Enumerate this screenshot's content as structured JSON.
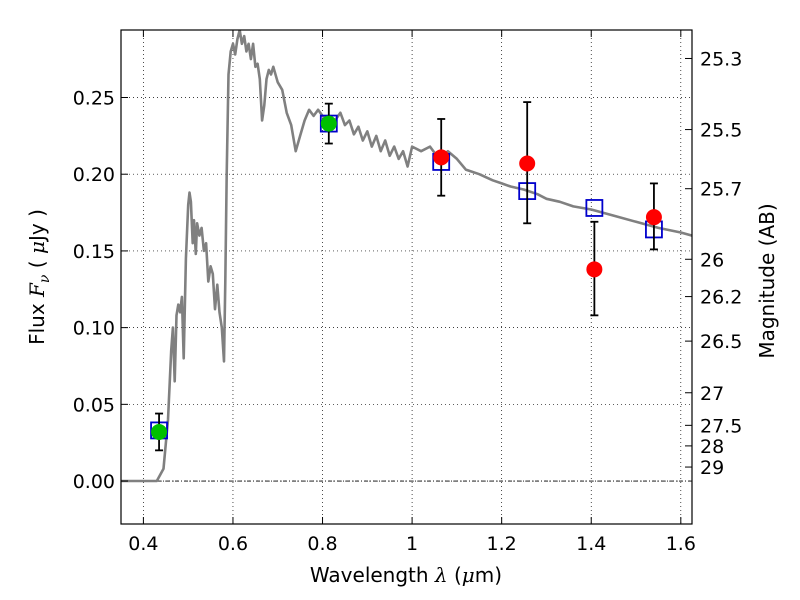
{
  "chart_data": {
    "type": "scatter",
    "title": "",
    "xlabel": {
      "prefix": "Wavelength  ",
      "sym": "λ",
      "suffix": " (",
      "mu": "μ",
      "unit": "m)"
    },
    "ylabel": {
      "prefix": "Flux  ",
      "sym": "F",
      "sub": "ν",
      "suffix": "  ( ",
      "mu": "μ",
      "unit": "Jy )"
    },
    "y2label": "Magnitude (AB)",
    "xlim": [
      0.35,
      1.625
    ],
    "ylim": [
      -0.028,
      0.294
    ],
    "grid": true,
    "x_ticks": [
      {
        "v": 0.4,
        "label": "0.4"
      },
      {
        "v": 0.6,
        "label": "0.6"
      },
      {
        "v": 0.8,
        "label": "0.8"
      },
      {
        "v": 1.0,
        "label": "1"
      },
      {
        "v": 1.2,
        "label": "1.2"
      },
      {
        "v": 1.4,
        "label": "1.4"
      },
      {
        "v": 1.6,
        "label": "1.6"
      }
    ],
    "y_ticks": [
      {
        "v": 0.0,
        "label": "0.00"
      },
      {
        "v": 0.05,
        "label": "0.05"
      },
      {
        "v": 0.1,
        "label": "0.10"
      },
      {
        "v": 0.15,
        "label": "0.15"
      },
      {
        "v": 0.2,
        "label": "0.20"
      },
      {
        "v": 0.25,
        "label": "0.25"
      }
    ],
    "mag_ticks": [
      {
        "mag": 25.3,
        "label": "25.3"
      },
      {
        "mag": 25.5,
        "label": "25.5"
      },
      {
        "mag": 25.7,
        "label": "25.7"
      },
      {
        "mag": 26.0,
        "label": "26"
      },
      {
        "mag": 26.2,
        "label": "26.2"
      },
      {
        "mag": 26.5,
        "label": "26.5"
      },
      {
        "mag": 27.0,
        "label": "27"
      },
      {
        "mag": 27.5,
        "label": "27.5"
      },
      {
        "mag": 28.0,
        "label": "28"
      },
      {
        "mag": 29.0,
        "label": "29"
      }
    ],
    "sed_model": {
      "color": "#808080",
      "points": [
        [
          0.35,
          0.0
        ],
        [
          0.42,
          0.0
        ],
        [
          0.43,
          0.0
        ],
        [
          0.445,
          0.008
        ],
        [
          0.455,
          0.04
        ],
        [
          0.462,
          0.085
        ],
        [
          0.466,
          0.1
        ],
        [
          0.47,
          0.065
        ],
        [
          0.474,
          0.108
        ],
        [
          0.478,
          0.115
        ],
        [
          0.482,
          0.11
        ],
        [
          0.486,
          0.12
        ],
        [
          0.49,
          0.08
        ],
        [
          0.495,
          0.145
        ],
        [
          0.5,
          0.18
        ],
        [
          0.503,
          0.188
        ],
        [
          0.506,
          0.182
        ],
        [
          0.51,
          0.155
        ],
        [
          0.513,
          0.17
        ],
        [
          0.517,
          0.148
        ],
        [
          0.52,
          0.168
        ],
        [
          0.525,
          0.16
        ],
        [
          0.53,
          0.165
        ],
        [
          0.535,
          0.15
        ],
        [
          0.54,
          0.155
        ],
        [
          0.545,
          0.13
        ],
        [
          0.55,
          0.14
        ],
        [
          0.555,
          0.135
        ],
        [
          0.56,
          0.112
        ],
        [
          0.565,
          0.128
        ],
        [
          0.57,
          0.11
        ],
        [
          0.575,
          0.1
        ],
        [
          0.58,
          0.078
        ],
        [
          0.583,
          0.13
        ],
        [
          0.586,
          0.2
        ],
        [
          0.59,
          0.265
        ],
        [
          0.595,
          0.28
        ],
        [
          0.6,
          0.285
        ],
        [
          0.605,
          0.278
        ],
        [
          0.61,
          0.288
        ],
        [
          0.615,
          0.294
        ],
        [
          0.62,
          0.285
        ],
        [
          0.625,
          0.29
        ],
        [
          0.63,
          0.28
        ],
        [
          0.635,
          0.285
        ],
        [
          0.64,
          0.275
        ],
        [
          0.645,
          0.285
        ],
        [
          0.65,
          0.27
        ],
        [
          0.655,
          0.272
        ],
        [
          0.66,
          0.262
        ],
        [
          0.665,
          0.235
        ],
        [
          0.67,
          0.245
        ],
        [
          0.675,
          0.262
        ],
        [
          0.68,
          0.268
        ],
        [
          0.685,
          0.265
        ],
        [
          0.69,
          0.27
        ],
        [
          0.7,
          0.26
        ],
        [
          0.71,
          0.255
        ],
        [
          0.72,
          0.24
        ],
        [
          0.73,
          0.232
        ],
        [
          0.74,
          0.215
        ],
        [
          0.75,
          0.225
        ],
        [
          0.76,
          0.235
        ],
        [
          0.77,
          0.242
        ],
        [
          0.78,
          0.238
        ],
        [
          0.79,
          0.242
        ],
        [
          0.8,
          0.238
        ],
        [
          0.81,
          0.235
        ],
        [
          0.82,
          0.232
        ],
        [
          0.83,
          0.236
        ],
        [
          0.84,
          0.24
        ],
        [
          0.85,
          0.232
        ],
        [
          0.86,
          0.235
        ],
        [
          0.87,
          0.226
        ],
        [
          0.88,
          0.231
        ],
        [
          0.89,
          0.222
        ],
        [
          0.9,
          0.228
        ],
        [
          0.91,
          0.218
        ],
        [
          0.92,
          0.225
        ],
        [
          0.93,
          0.215
        ],
        [
          0.94,
          0.222
        ],
        [
          0.95,
          0.212
        ],
        [
          0.96,
          0.218
        ],
        [
          0.97,
          0.21
        ],
        [
          0.98,
          0.215
        ],
        [
          0.99,
          0.205
        ],
        [
          1.0,
          0.218
        ],
        [
          1.02,
          0.215
        ],
        [
          1.04,
          0.218
        ],
        [
          1.06,
          0.21
        ],
        [
          1.08,
          0.215
        ],
        [
          1.1,
          0.21
        ],
        [
          1.12,
          0.203
        ],
        [
          1.15,
          0.2
        ],
        [
          1.18,
          0.196
        ],
        [
          1.2,
          0.194
        ],
        [
          1.22,
          0.192
        ],
        [
          1.25,
          0.19
        ],
        [
          1.28,
          0.187
        ],
        [
          1.3,
          0.184
        ],
        [
          1.33,
          0.182
        ],
        [
          1.36,
          0.179
        ],
        [
          1.4,
          0.177
        ],
        [
          1.45,
          0.173
        ],
        [
          1.5,
          0.169
        ],
        [
          1.55,
          0.165
        ],
        [
          1.6,
          0.162
        ],
        [
          1.625,
          0.16
        ]
      ]
    },
    "model_photometry": {
      "color": "#0000cc",
      "points": [
        {
          "x": 0.435,
          "y": 0.033
        },
        {
          "x": 0.814,
          "y": 0.233
        },
        {
          "x": 1.065,
          "y": 0.208
        },
        {
          "x": 1.257,
          "y": 0.189
        },
        {
          "x": 1.407,
          "y": 0.178
        },
        {
          "x": 1.54,
          "y": 0.164
        }
      ]
    },
    "observed_optical": {
      "color": "#00c000",
      "points": [
        {
          "x": 0.435,
          "y": 0.032,
          "lo": 0.02,
          "hi": 0.044
        },
        {
          "x": 0.814,
          "y": 0.233,
          "lo": 0.22,
          "hi": 0.246
        }
      ]
    },
    "observed_nir": {
      "color": "#ff0000",
      "points": [
        {
          "x": 1.065,
          "y": 0.211,
          "lo": 0.186,
          "hi": 0.236
        },
        {
          "x": 1.257,
          "y": 0.207,
          "lo": 0.168,
          "hi": 0.247
        },
        {
          "x": 1.407,
          "y": 0.138,
          "lo": 0.108,
          "hi": 0.169
        },
        {
          "x": 1.54,
          "y": 0.172,
          "lo": 0.151,
          "hi": 0.194
        }
      ]
    }
  }
}
